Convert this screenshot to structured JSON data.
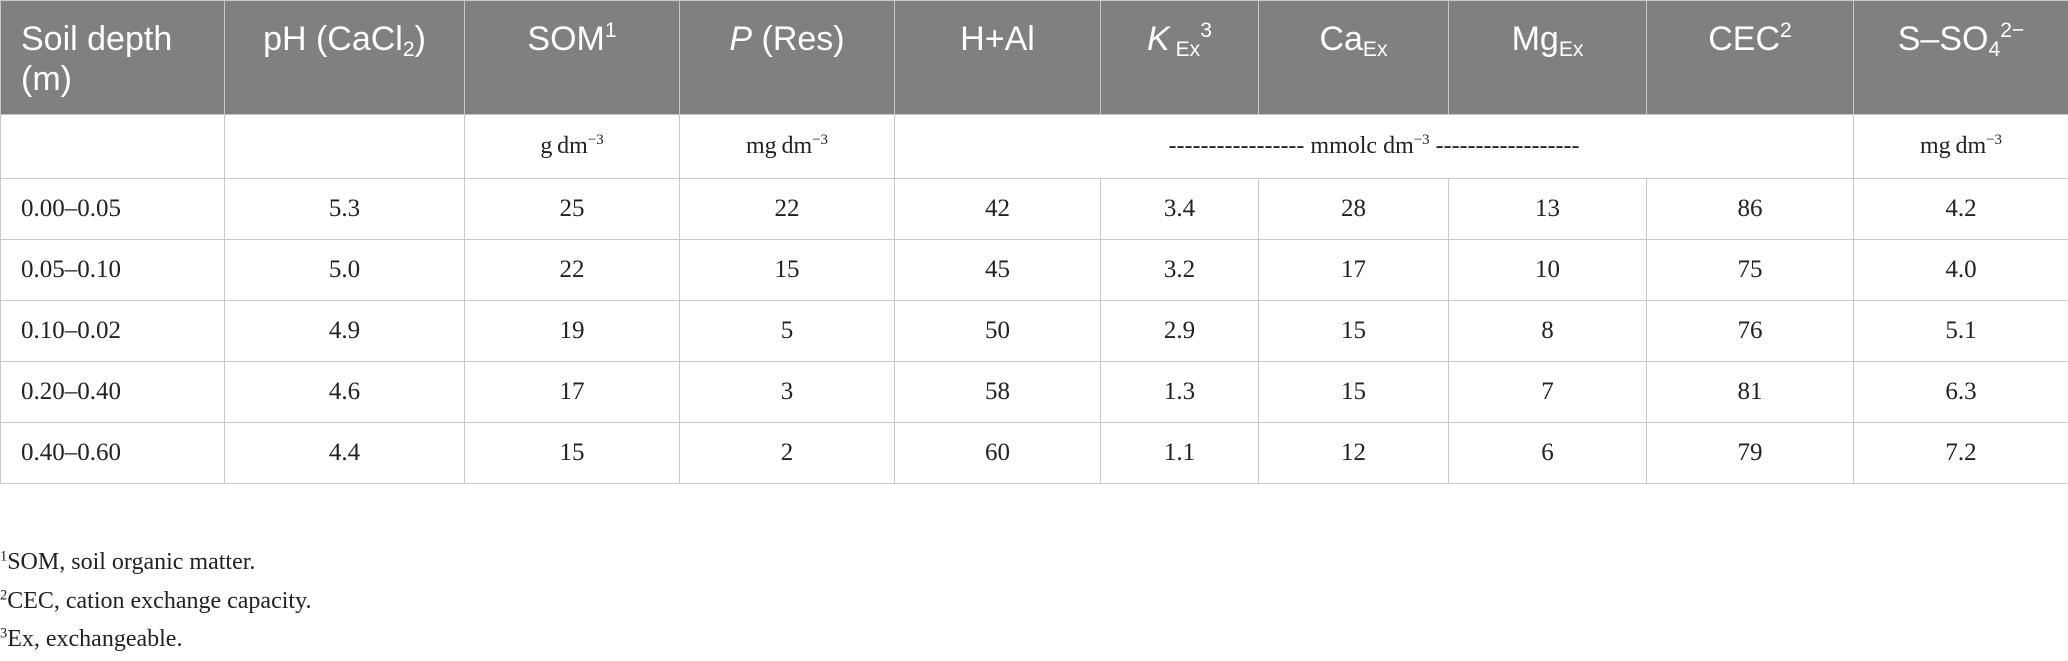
{
  "table": {
    "headers": [
      {
        "text": "Soil depth (m)"
      },
      {
        "pre": "pH (CaCl",
        "sub": "2",
        "post": ")"
      },
      {
        "pre": "SOM",
        "sup": "1"
      },
      {
        "italic": "P",
        "post": " (Res)"
      },
      {
        "pre": "H+Al"
      },
      {
        "italic": "K",
        "sub": " Ex",
        "sup": "3"
      },
      {
        "pre": "Ca",
        "sub": "Ex"
      },
      {
        "pre": "Mg",
        "sub": "Ex"
      },
      {
        "pre": "CEC",
        "sup": "2"
      },
      {
        "pre": "S–SO",
        "sub": "4",
        "sup": "2−"
      }
    ],
    "units": {
      "som": {
        "base": "g dm",
        "exp": "−3"
      },
      "p": {
        "base": "mg dm",
        "exp": "−3"
      },
      "exchangeable": {
        "base": "----------------- mmolc dm",
        "exp": "−3",
        "tail": " ------------------"
      },
      "s": {
        "base": "mg dm",
        "exp": "−3"
      }
    },
    "rows": [
      [
        "0.00–0.05",
        "5.3",
        "25",
        "22",
        "42",
        "3.4",
        "28",
        "13",
        "86",
        "4.2"
      ],
      [
        "0.05–0.10",
        "5.0",
        "22",
        "15",
        "45",
        "3.2",
        "17",
        "10",
        "75",
        "4.0"
      ],
      [
        "0.10–0.02",
        "4.9",
        "19",
        "5",
        "50",
        "2.9",
        "15",
        "8",
        "76",
        "5.1"
      ],
      [
        "0.20–0.40",
        "4.6",
        "17",
        "3",
        "58",
        "1.3",
        "15",
        "7",
        "81",
        "6.3"
      ],
      [
        "0.40–0.60",
        "4.4",
        "15",
        "2",
        "60",
        "1.1",
        "12",
        "6",
        "79",
        "7.2"
      ]
    ]
  },
  "footnotes": [
    {
      "mark": "1",
      "text": "SOM, soil organic matter."
    },
    {
      "mark": "2",
      "text": "CEC, cation exchange capacity."
    },
    {
      "mark": "3",
      "text": "Ex, exchangeable."
    }
  ]
}
